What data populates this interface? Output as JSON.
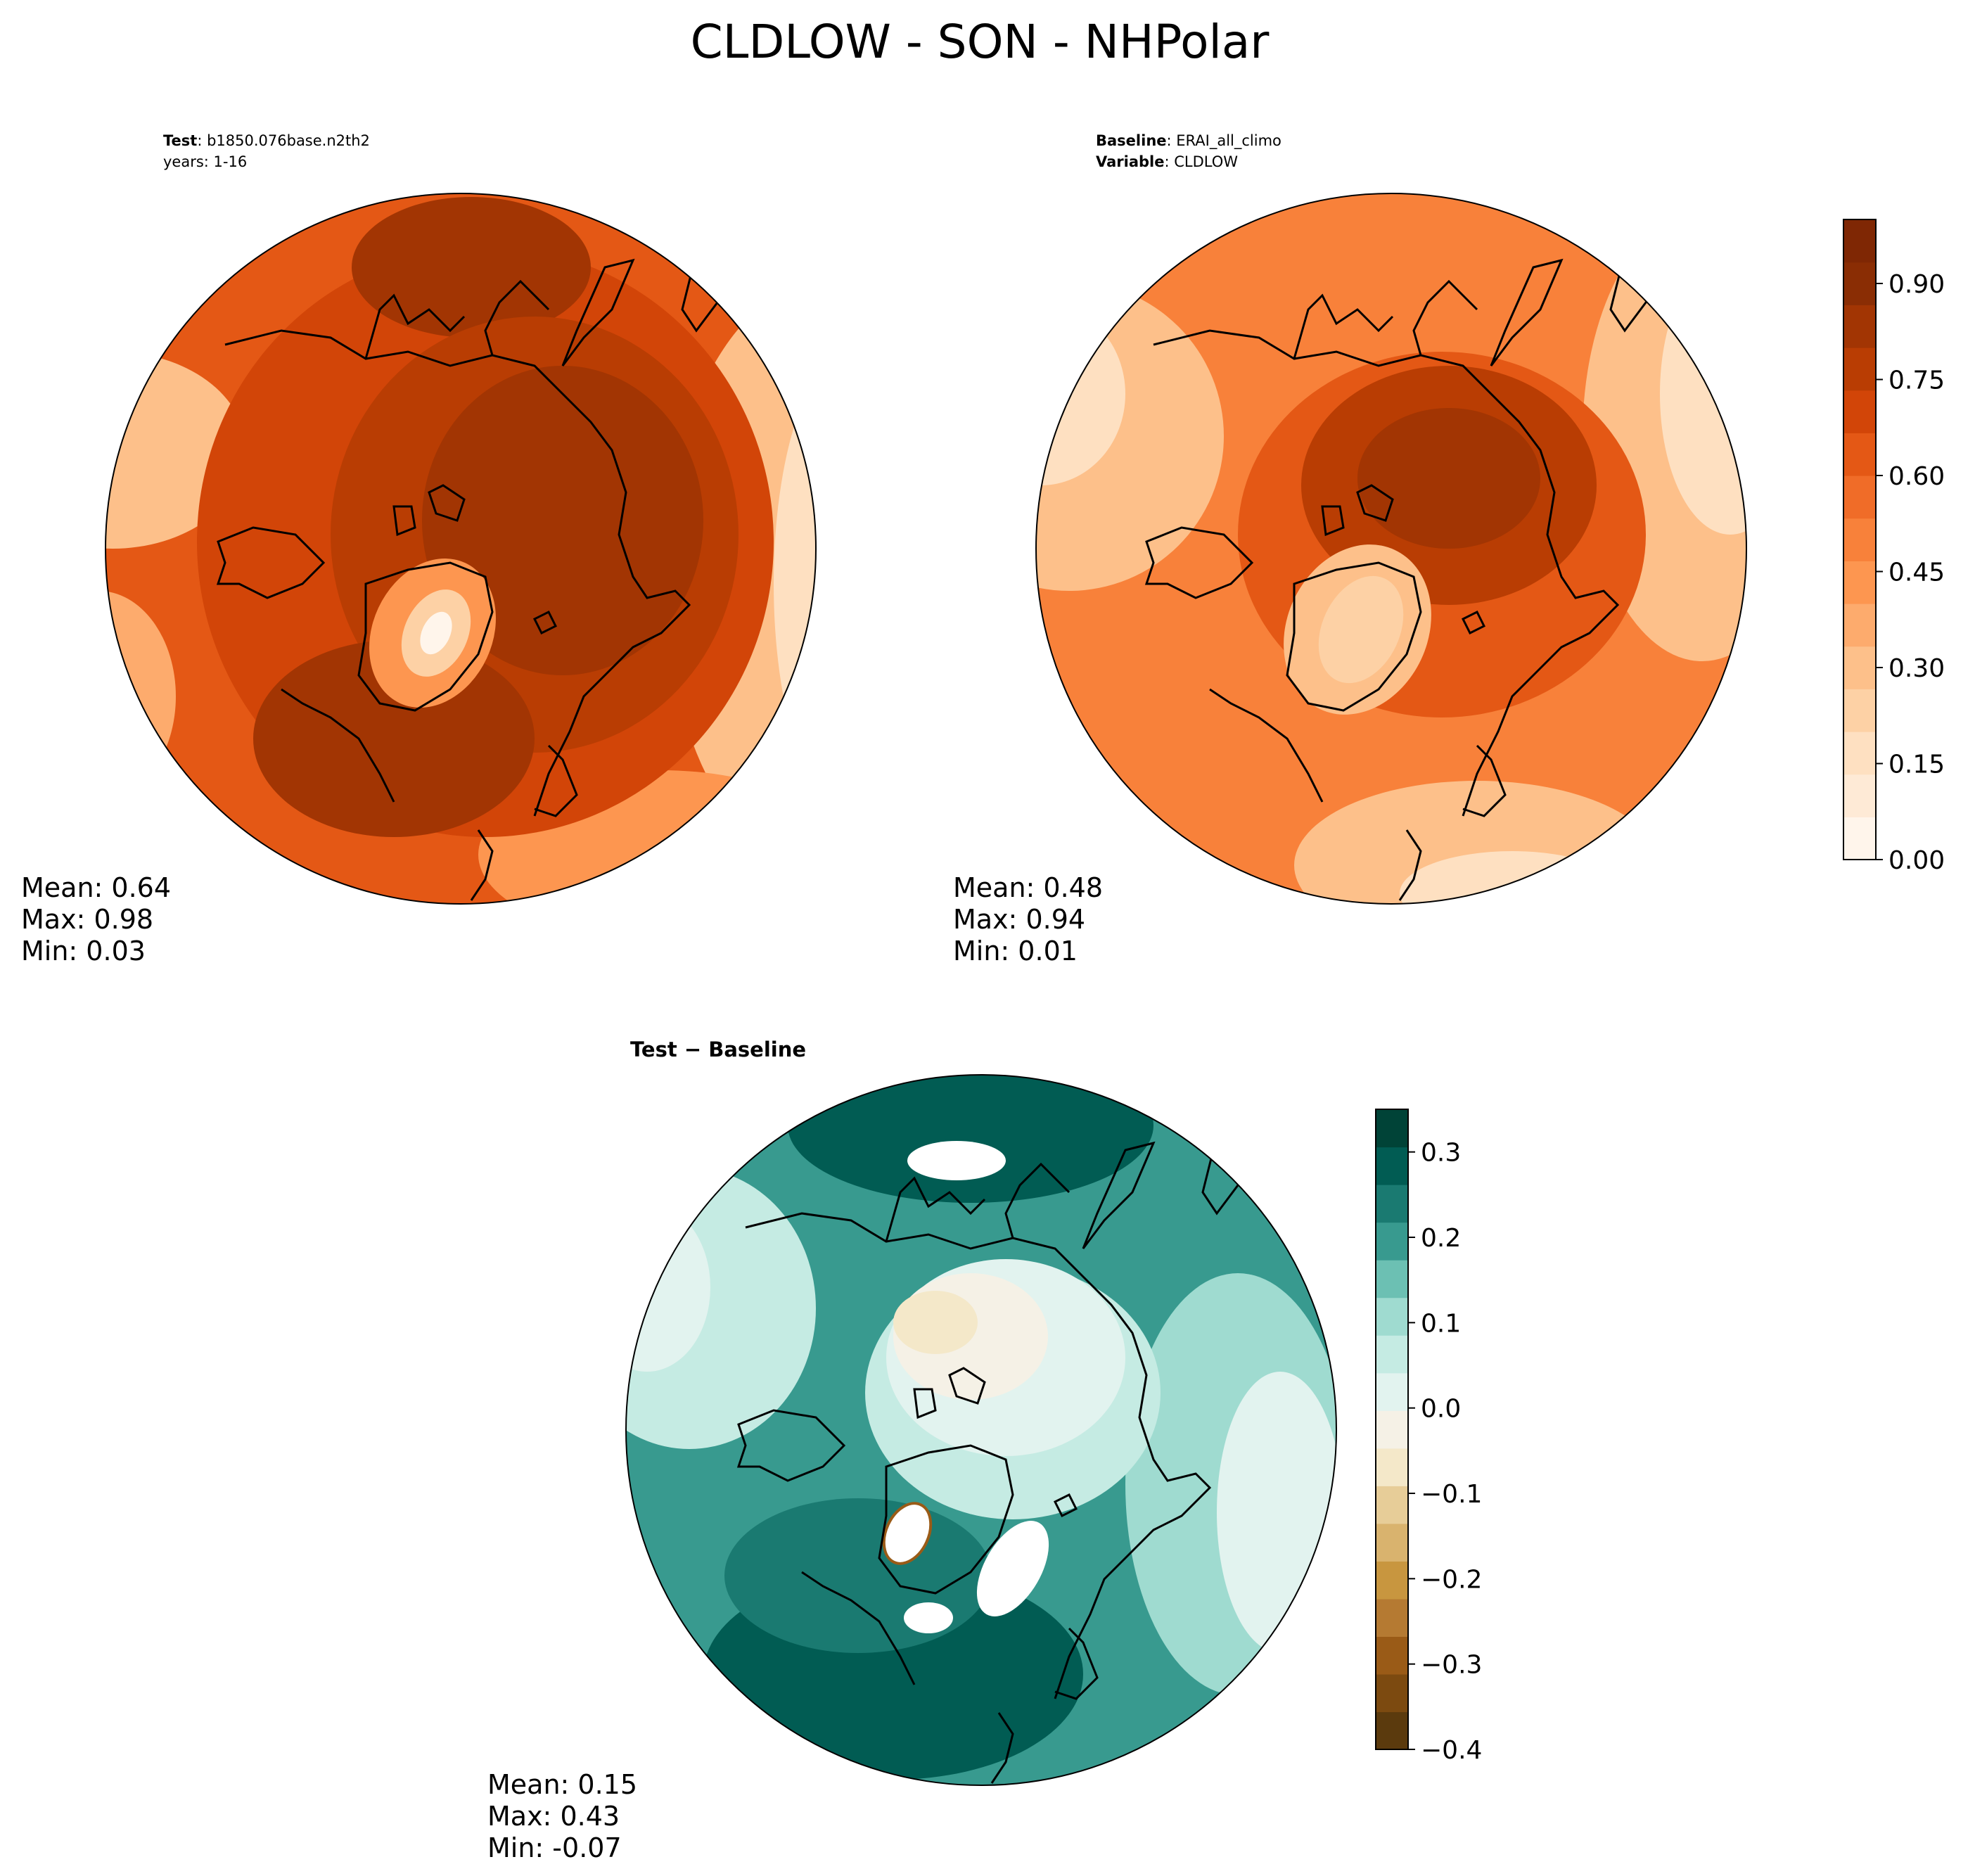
{
  "figure_title": "CLDLOW - SON - NHPolar",
  "panels": {
    "test": {
      "label_bold": "Test",
      "label_text": ": b1850.076base.n2th2",
      "line2": "years: 1-16",
      "mean": "Mean:  0.64",
      "max": "Max:  0.98",
      "min": "Min:  0.03"
    },
    "baseline": {
      "label_bold": "Baseline",
      "label_text": ": ERAI_all_climo",
      "line2_bold": "Variable",
      "line2_text": ": CLDLOW",
      "mean": "Mean:  0.48",
      "max": "Max:  0.94",
      "min": "Min:  0.01"
    },
    "diff": {
      "label_bold": "Test − Baseline",
      "mean": "Mean:  0.15",
      "max": "Max:  0.43",
      "min": "Min: -0.07"
    }
  },
  "colors": {
    "oranges": [
      "#fff5eb",
      "#feead6",
      "#fee0c1",
      "#fdd1a5",
      "#fdc08a",
      "#fdab6d",
      "#fd9650",
      "#f8813a",
      "#f06c28",
      "#e45815",
      "#d24508",
      "#b93d03",
      "#a23503",
      "#8a2d04",
      "#7f2704"
    ],
    "brbg": [
      "#5b3a0d",
      "#7c4a10",
      "#9a5b17",
      "#b57a32",
      "#c8963f",
      "#d9b36e",
      "#e7cd98",
      "#f4e8c9",
      "#f5f1e6",
      "#e2f3ef",
      "#c5ebe3",
      "#9fdbd0",
      "#6cc0b3",
      "#389a8f",
      "#1a7a71",
      "#015c53",
      "#004337"
    ]
  },
  "chart_data": [
    {
      "type": "heatmap",
      "title": "Test: b1850.076base.n2th2",
      "projection": "NHPolar",
      "stats": {
        "mean": 0.64,
        "max": 0.98,
        "min": 0.03
      }
    },
    {
      "type": "heatmap",
      "title": "Baseline: ERAI_all_climo",
      "projection": "NHPolar",
      "stats": {
        "mean": 0.48,
        "max": 0.94,
        "min": 0.01
      },
      "colorbar": {
        "range": [
          0.0,
          1.0
        ],
        "ticks": [
          0.0,
          0.15,
          0.3,
          0.45,
          0.6,
          0.75,
          0.9
        ],
        "tick_labels": [
          "0.00",
          "0.15",
          "0.30",
          "0.45",
          "0.60",
          "0.75",
          "0.90"
        ]
      }
    },
    {
      "type": "heatmap",
      "title": "Test − Baseline",
      "projection": "NHPolar",
      "stats": {
        "mean": 0.15,
        "max": 0.43,
        "min": -0.07
      },
      "colorbar": {
        "range": [
          -0.4,
          0.35
        ],
        "ticks": [
          -0.4,
          -0.3,
          -0.2,
          -0.1,
          0.0,
          0.1,
          0.2,
          0.3
        ],
        "tick_labels": [
          "−0.4",
          "−0.3",
          "−0.2",
          "−0.1",
          "0.0",
          "0.1",
          "0.2",
          "0.3"
        ]
      }
    }
  ]
}
